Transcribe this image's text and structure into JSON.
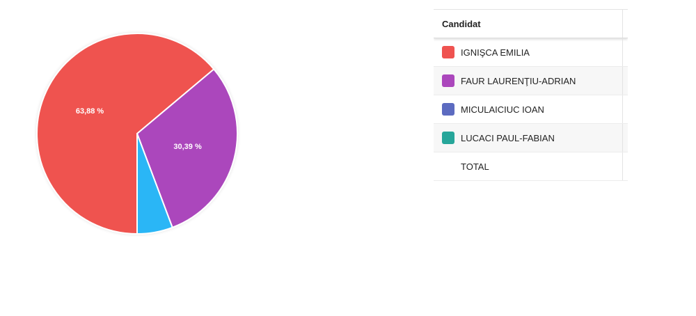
{
  "chart_data": {
    "type": "pie",
    "categories": [
      "IGNIŞCA EMILIA",
      "FAUR LAURENŢIU-ADRIAN",
      "MICULAICIUC IOAN",
      "LUCACI PAUL-FABIAN"
    ],
    "values": [
      63.88,
      30.39,
      5.73,
      0
    ],
    "value_labels": [
      "63,88 %",
      "30,39 %",
      null,
      null
    ],
    "colors": [
      "#ef5350",
      "#ab47bc",
      "#29b6f6",
      "#26a69a"
    ],
    "legend_colors": [
      "#ef5350",
      "#ab47bc",
      "#5c6bc0",
      "#26a69a"
    ],
    "table_header": "Candidat",
    "total_label": "TOTAL"
  }
}
